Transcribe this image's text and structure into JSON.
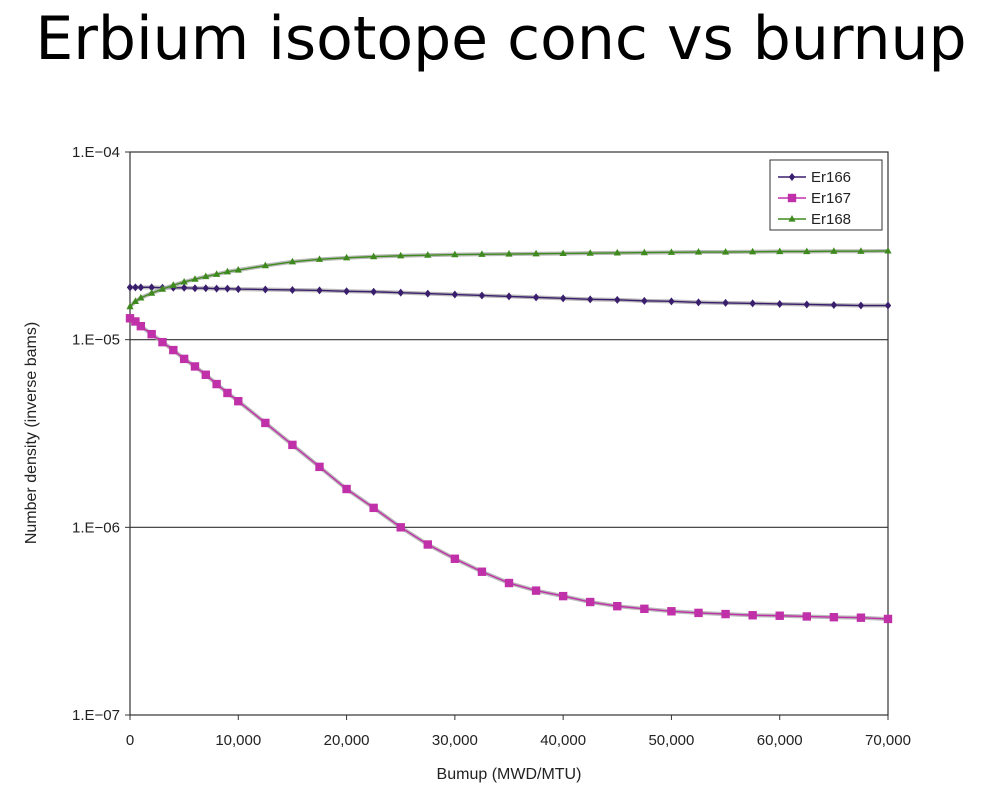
{
  "page": {
    "title": "Erbium isotope conc vs burnup"
  },
  "chart_data": {
    "type": "line",
    "xlabel": "Bumup (MWD/MTU)",
    "ylabel": "Number density (inverse bams)",
    "xlim": [
      0,
      70000
    ],
    "ylim": [
      1e-07,
      0.0001
    ],
    "yscale": "log",
    "x_ticks": [
      "0",
      "10,000",
      "20,000",
      "30,000",
      "40,000",
      "50,000",
      "60,000",
      "70,000"
    ],
    "y_ticks": [
      "1.E−04",
      "1.E−05",
      "1.E−06",
      "1.E−07"
    ],
    "grid": "horizontal major lines",
    "legend": "top-right",
    "series": [
      {
        "name": "Er166",
        "color": "#3a1e6e",
        "marker": "diamond",
        "x": [
          0,
          500,
          1000,
          2000,
          3000,
          4000,
          5000,
          6000,
          7000,
          8000,
          9000,
          10000,
          12500,
          15000,
          17500,
          20000,
          22500,
          25000,
          27500,
          30000,
          32500,
          35000,
          37500,
          40000,
          42500,
          45000,
          47500,
          50000,
          52500,
          55000,
          57500,
          60000,
          62500,
          65000,
          67500,
          70000
        ],
        "y": [
          1.9e-05,
          1.9e-05,
          1.9e-05,
          1.9e-05,
          1.89e-05,
          1.89e-05,
          1.89e-05,
          1.88e-05,
          1.88e-05,
          1.87e-05,
          1.87e-05,
          1.86e-05,
          1.85e-05,
          1.84e-05,
          1.83e-05,
          1.81e-05,
          1.8e-05,
          1.78e-05,
          1.76e-05,
          1.74e-05,
          1.72e-05,
          1.7e-05,
          1.68e-05,
          1.66e-05,
          1.64e-05,
          1.63e-05,
          1.61e-05,
          1.6e-05,
          1.58e-05,
          1.57e-05,
          1.56e-05,
          1.55e-05,
          1.54e-05,
          1.53e-05,
          1.52e-05,
          1.52e-05
        ]
      },
      {
        "name": "Er167",
        "color": "#c030a8",
        "marker": "square",
        "x": [
          0,
          500,
          1000,
          2000,
          3000,
          4000,
          5000,
          6000,
          7000,
          8000,
          9000,
          10000,
          12500,
          15000,
          17500,
          20000,
          22500,
          25000,
          27500,
          30000,
          32500,
          35000,
          37500,
          40000,
          42500,
          45000,
          47500,
          50000,
          52500,
          55000,
          57500,
          60000,
          62500,
          65000,
          67500,
          70000
        ],
        "y": [
          1.3e-05,
          1.25e-05,
          1.18e-05,
          1.07e-05,
          9.7e-06,
          8.8e-06,
          7.9e-06,
          7.2e-06,
          6.5e-06,
          5.8e-06,
          5.2e-06,
          4.7e-06,
          3.6e-06,
          2.75e-06,
          2.1e-06,
          1.6e-06,
          1.27e-06,
          1e-06,
          8.1e-07,
          6.8e-07,
          5.8e-07,
          5.05e-07,
          4.6e-07,
          4.3e-07,
          4e-07,
          3.8e-07,
          3.68e-07,
          3.57e-07,
          3.5e-07,
          3.45e-07,
          3.4e-07,
          3.38e-07,
          3.35e-07,
          3.32e-07,
          3.3e-07,
          3.25e-07
        ]
      },
      {
        "name": "Er168",
        "color": "#3f8a1e",
        "marker": "triangle",
        "x": [
          0,
          500,
          1000,
          2000,
          3000,
          4000,
          5000,
          6000,
          7000,
          8000,
          9000,
          10000,
          12500,
          15000,
          17500,
          20000,
          22500,
          25000,
          27500,
          30000,
          32500,
          35000,
          37500,
          40000,
          42500,
          45000,
          47500,
          50000,
          52500,
          55000,
          57500,
          60000,
          62500,
          65000,
          67500,
          70000
        ],
        "y": [
          1.5e-05,
          1.6e-05,
          1.67e-05,
          1.77e-05,
          1.86e-05,
          1.95e-05,
          2.03e-05,
          2.1e-05,
          2.17e-05,
          2.23e-05,
          2.3e-05,
          2.35e-05,
          2.48e-05,
          2.6e-05,
          2.68e-05,
          2.73e-05,
          2.77e-05,
          2.8e-05,
          2.82e-05,
          2.84e-05,
          2.85e-05,
          2.86e-05,
          2.87e-05,
          2.88e-05,
          2.89e-05,
          2.9e-05,
          2.91e-05,
          2.92e-05,
          2.93e-05,
          2.93e-05,
          2.94e-05,
          2.95e-05,
          2.95e-05,
          2.96e-05,
          2.96e-05,
          2.97e-05
        ]
      }
    ]
  }
}
